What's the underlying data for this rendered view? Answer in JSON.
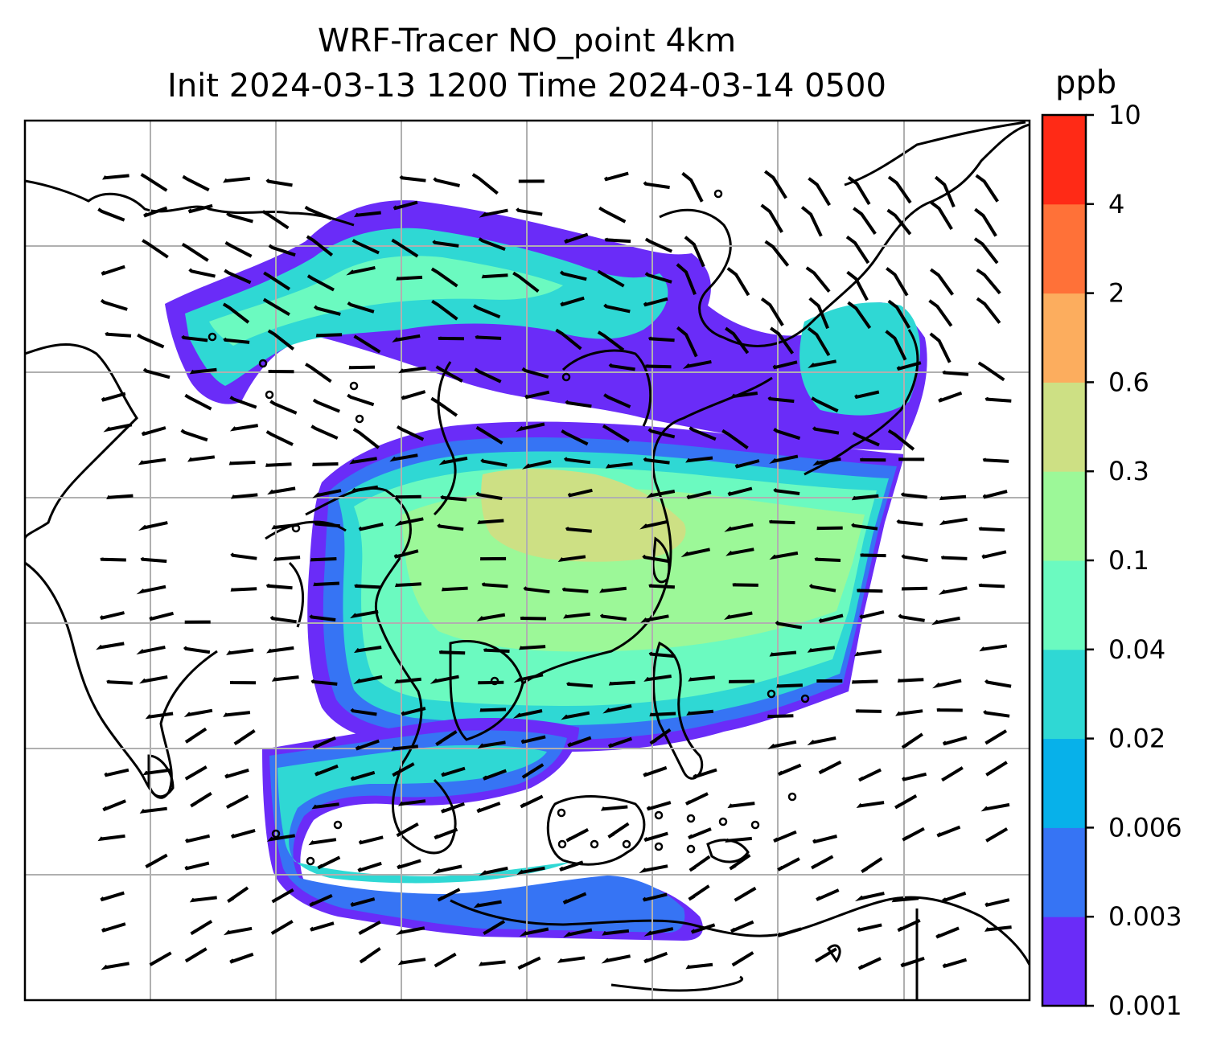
{
  "title_line1": "WRF-Tracer NO_point 4km",
  "title_line2": "Init 2024-03-13 1200 Time 2024-03-14 0500",
  "colorbar": {
    "unit": "ppb",
    "levels": [
      "0.001",
      "0.003",
      "0.006",
      "0.02",
      "0.04",
      "0.1",
      "0.3",
      "0.6",
      "2",
      "4",
      "10"
    ],
    "colors": [
      "#6a2cf8",
      "#3674f4",
      "#07b1ea",
      "#2fd8d4",
      "#6bfac0",
      "#9cf898",
      "#cde084",
      "#fcad5e",
      "#ff7138",
      "#ff2a16"
    ]
  },
  "map": {
    "gridlines": true,
    "features": [
      "coastlines",
      "country-borders",
      "wind-barbs",
      "tracer-concentration-field"
    ]
  }
}
